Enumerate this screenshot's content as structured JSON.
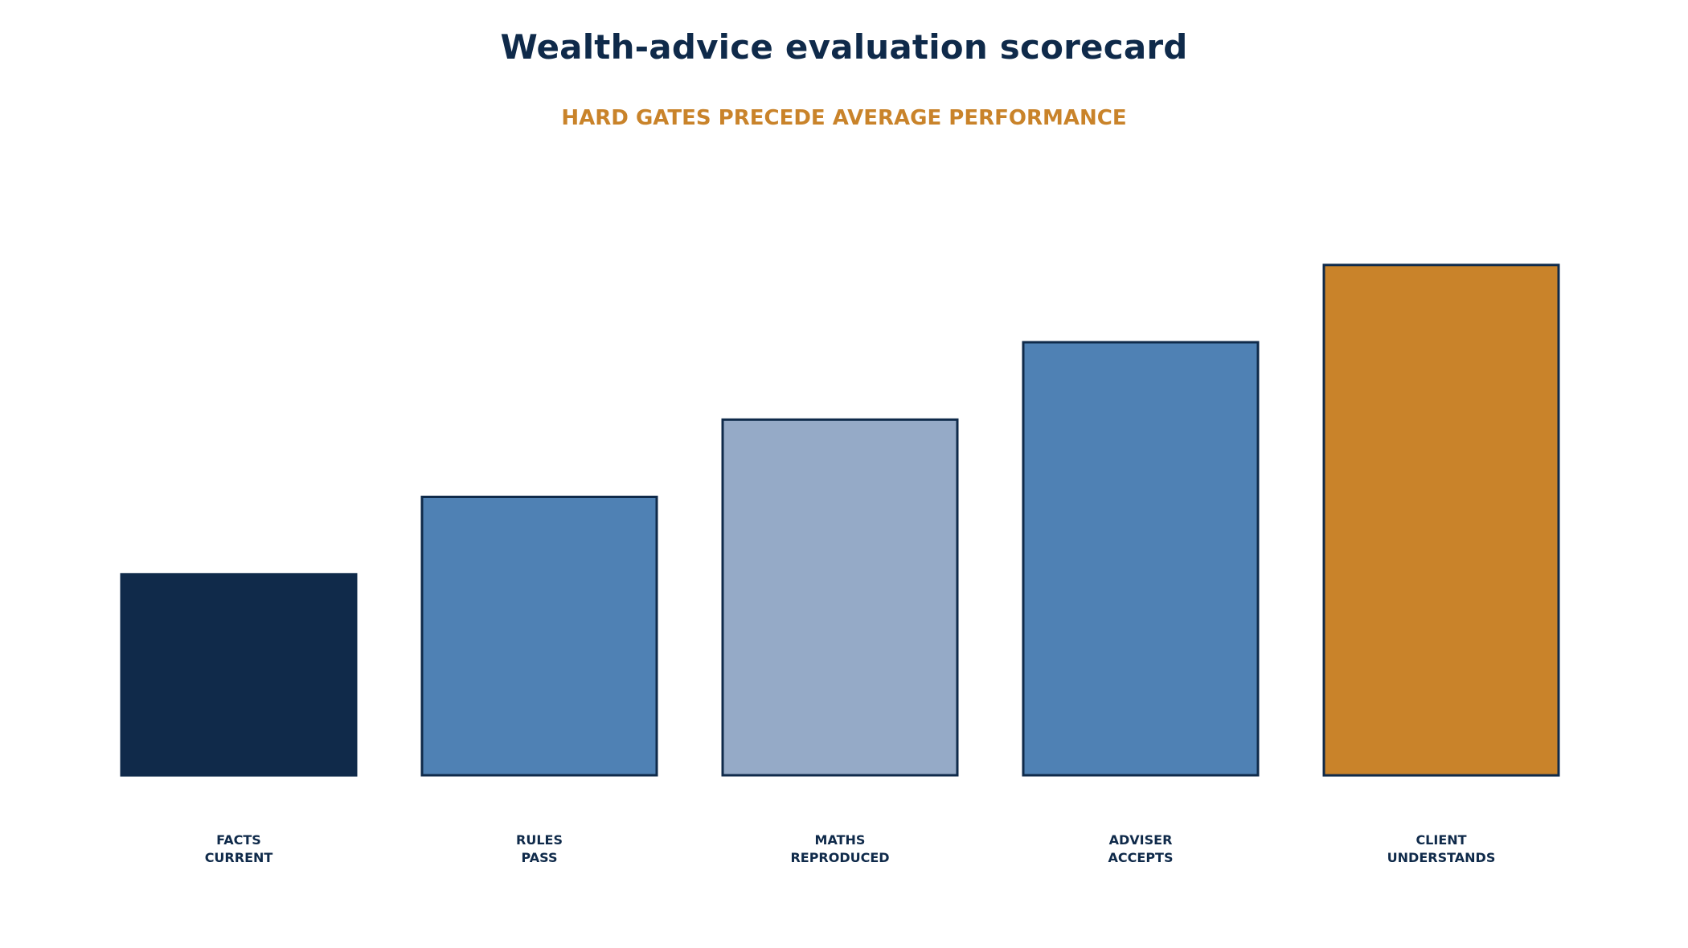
{
  "chart_data": {
    "type": "bar",
    "title": "Wealth-advice evaluation scorecard",
    "subtitle": "HARD GATES PRECEDE AVERAGE PERFORMANCE",
    "categories": [
      [
        "FACTS",
        "CURRENT"
      ],
      [
        "RULES",
        "PASS"
      ],
      [
        "MATHS",
        "REPRODUCED"
      ],
      [
        "ADVISER",
        "ACCEPTS"
      ],
      [
        "CLIENT",
        "UNDERSTANDS"
      ]
    ],
    "values": [
      2.6,
      3.6,
      4.6,
      5.6,
      6.6
    ],
    "colors": [
      "#102a4a",
      "#4f81b4",
      "#95aac7",
      "#4f81b4",
      "#c9832a"
    ],
    "border_color": "#0f2a4a",
    "ylim": [
      0,
      8
    ],
    "xlabel": "",
    "ylabel": "",
    "grid": false,
    "legend": "none"
  }
}
